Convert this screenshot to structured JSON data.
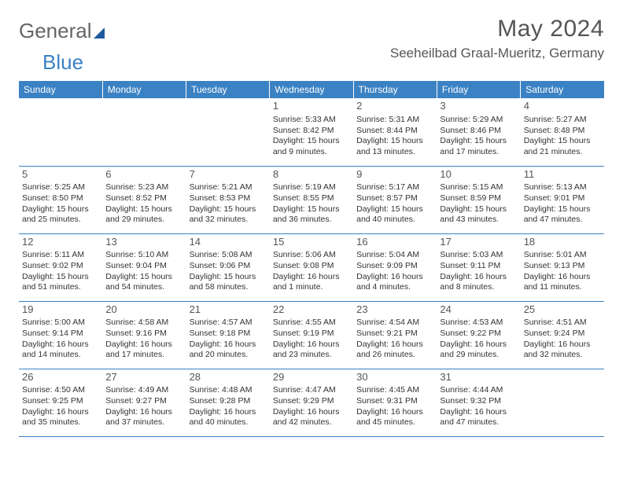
{
  "logo": {
    "part1": "General",
    "part2": "Blue"
  },
  "title": "May 2024",
  "location": "Seeheilbad Graal-Mueritz, Germany",
  "colors": {
    "header_bg": "#3b82c4",
    "header_text": "#ffffff",
    "divider": "#3b82c4",
    "text": "#333333",
    "title_color": "#555555"
  },
  "typography": {
    "title_fontsize": 30,
    "location_fontsize": 17,
    "dayheader_fontsize": 12,
    "daynum_fontsize": 13,
    "cell_fontsize": 10.5
  },
  "dayheaders": [
    "Sunday",
    "Monday",
    "Tuesday",
    "Wednesday",
    "Thursday",
    "Friday",
    "Saturday"
  ],
  "weeks": [
    [
      null,
      null,
      null,
      {
        "n": "1",
        "sr": "Sunrise: 5:33 AM",
        "ss": "Sunset: 8:42 PM",
        "dl": "Daylight: 15 hours and 9 minutes."
      },
      {
        "n": "2",
        "sr": "Sunrise: 5:31 AM",
        "ss": "Sunset: 8:44 PM",
        "dl": "Daylight: 15 hours and 13 minutes."
      },
      {
        "n": "3",
        "sr": "Sunrise: 5:29 AM",
        "ss": "Sunset: 8:46 PM",
        "dl": "Daylight: 15 hours and 17 minutes."
      },
      {
        "n": "4",
        "sr": "Sunrise: 5:27 AM",
        "ss": "Sunset: 8:48 PM",
        "dl": "Daylight: 15 hours and 21 minutes."
      }
    ],
    [
      {
        "n": "5",
        "sr": "Sunrise: 5:25 AM",
        "ss": "Sunset: 8:50 PM",
        "dl": "Daylight: 15 hours and 25 minutes."
      },
      {
        "n": "6",
        "sr": "Sunrise: 5:23 AM",
        "ss": "Sunset: 8:52 PM",
        "dl": "Daylight: 15 hours and 29 minutes."
      },
      {
        "n": "7",
        "sr": "Sunrise: 5:21 AM",
        "ss": "Sunset: 8:53 PM",
        "dl": "Daylight: 15 hours and 32 minutes."
      },
      {
        "n": "8",
        "sr": "Sunrise: 5:19 AM",
        "ss": "Sunset: 8:55 PM",
        "dl": "Daylight: 15 hours and 36 minutes."
      },
      {
        "n": "9",
        "sr": "Sunrise: 5:17 AM",
        "ss": "Sunset: 8:57 PM",
        "dl": "Daylight: 15 hours and 40 minutes."
      },
      {
        "n": "10",
        "sr": "Sunrise: 5:15 AM",
        "ss": "Sunset: 8:59 PM",
        "dl": "Daylight: 15 hours and 43 minutes."
      },
      {
        "n": "11",
        "sr": "Sunrise: 5:13 AM",
        "ss": "Sunset: 9:01 PM",
        "dl": "Daylight: 15 hours and 47 minutes."
      }
    ],
    [
      {
        "n": "12",
        "sr": "Sunrise: 5:11 AM",
        "ss": "Sunset: 9:02 PM",
        "dl": "Daylight: 15 hours and 51 minutes."
      },
      {
        "n": "13",
        "sr": "Sunrise: 5:10 AM",
        "ss": "Sunset: 9:04 PM",
        "dl": "Daylight: 15 hours and 54 minutes."
      },
      {
        "n": "14",
        "sr": "Sunrise: 5:08 AM",
        "ss": "Sunset: 9:06 PM",
        "dl": "Daylight: 15 hours and 58 minutes."
      },
      {
        "n": "15",
        "sr": "Sunrise: 5:06 AM",
        "ss": "Sunset: 9:08 PM",
        "dl": "Daylight: 16 hours and 1 minute."
      },
      {
        "n": "16",
        "sr": "Sunrise: 5:04 AM",
        "ss": "Sunset: 9:09 PM",
        "dl": "Daylight: 16 hours and 4 minutes."
      },
      {
        "n": "17",
        "sr": "Sunrise: 5:03 AM",
        "ss": "Sunset: 9:11 PM",
        "dl": "Daylight: 16 hours and 8 minutes."
      },
      {
        "n": "18",
        "sr": "Sunrise: 5:01 AM",
        "ss": "Sunset: 9:13 PM",
        "dl": "Daylight: 16 hours and 11 minutes."
      }
    ],
    [
      {
        "n": "19",
        "sr": "Sunrise: 5:00 AM",
        "ss": "Sunset: 9:14 PM",
        "dl": "Daylight: 16 hours and 14 minutes."
      },
      {
        "n": "20",
        "sr": "Sunrise: 4:58 AM",
        "ss": "Sunset: 9:16 PM",
        "dl": "Daylight: 16 hours and 17 minutes."
      },
      {
        "n": "21",
        "sr": "Sunrise: 4:57 AM",
        "ss": "Sunset: 9:18 PM",
        "dl": "Daylight: 16 hours and 20 minutes."
      },
      {
        "n": "22",
        "sr": "Sunrise: 4:55 AM",
        "ss": "Sunset: 9:19 PM",
        "dl": "Daylight: 16 hours and 23 minutes."
      },
      {
        "n": "23",
        "sr": "Sunrise: 4:54 AM",
        "ss": "Sunset: 9:21 PM",
        "dl": "Daylight: 16 hours and 26 minutes."
      },
      {
        "n": "24",
        "sr": "Sunrise: 4:53 AM",
        "ss": "Sunset: 9:22 PM",
        "dl": "Daylight: 16 hours and 29 minutes."
      },
      {
        "n": "25",
        "sr": "Sunrise: 4:51 AM",
        "ss": "Sunset: 9:24 PM",
        "dl": "Daylight: 16 hours and 32 minutes."
      }
    ],
    [
      {
        "n": "26",
        "sr": "Sunrise: 4:50 AM",
        "ss": "Sunset: 9:25 PM",
        "dl": "Daylight: 16 hours and 35 minutes."
      },
      {
        "n": "27",
        "sr": "Sunrise: 4:49 AM",
        "ss": "Sunset: 9:27 PM",
        "dl": "Daylight: 16 hours and 37 minutes."
      },
      {
        "n": "28",
        "sr": "Sunrise: 4:48 AM",
        "ss": "Sunset: 9:28 PM",
        "dl": "Daylight: 16 hours and 40 minutes."
      },
      {
        "n": "29",
        "sr": "Sunrise: 4:47 AM",
        "ss": "Sunset: 9:29 PM",
        "dl": "Daylight: 16 hours and 42 minutes."
      },
      {
        "n": "30",
        "sr": "Sunrise: 4:45 AM",
        "ss": "Sunset: 9:31 PM",
        "dl": "Daylight: 16 hours and 45 minutes."
      },
      {
        "n": "31",
        "sr": "Sunrise: 4:44 AM",
        "ss": "Sunset: 9:32 PM",
        "dl": "Daylight: 16 hours and 47 minutes."
      },
      null
    ]
  ]
}
